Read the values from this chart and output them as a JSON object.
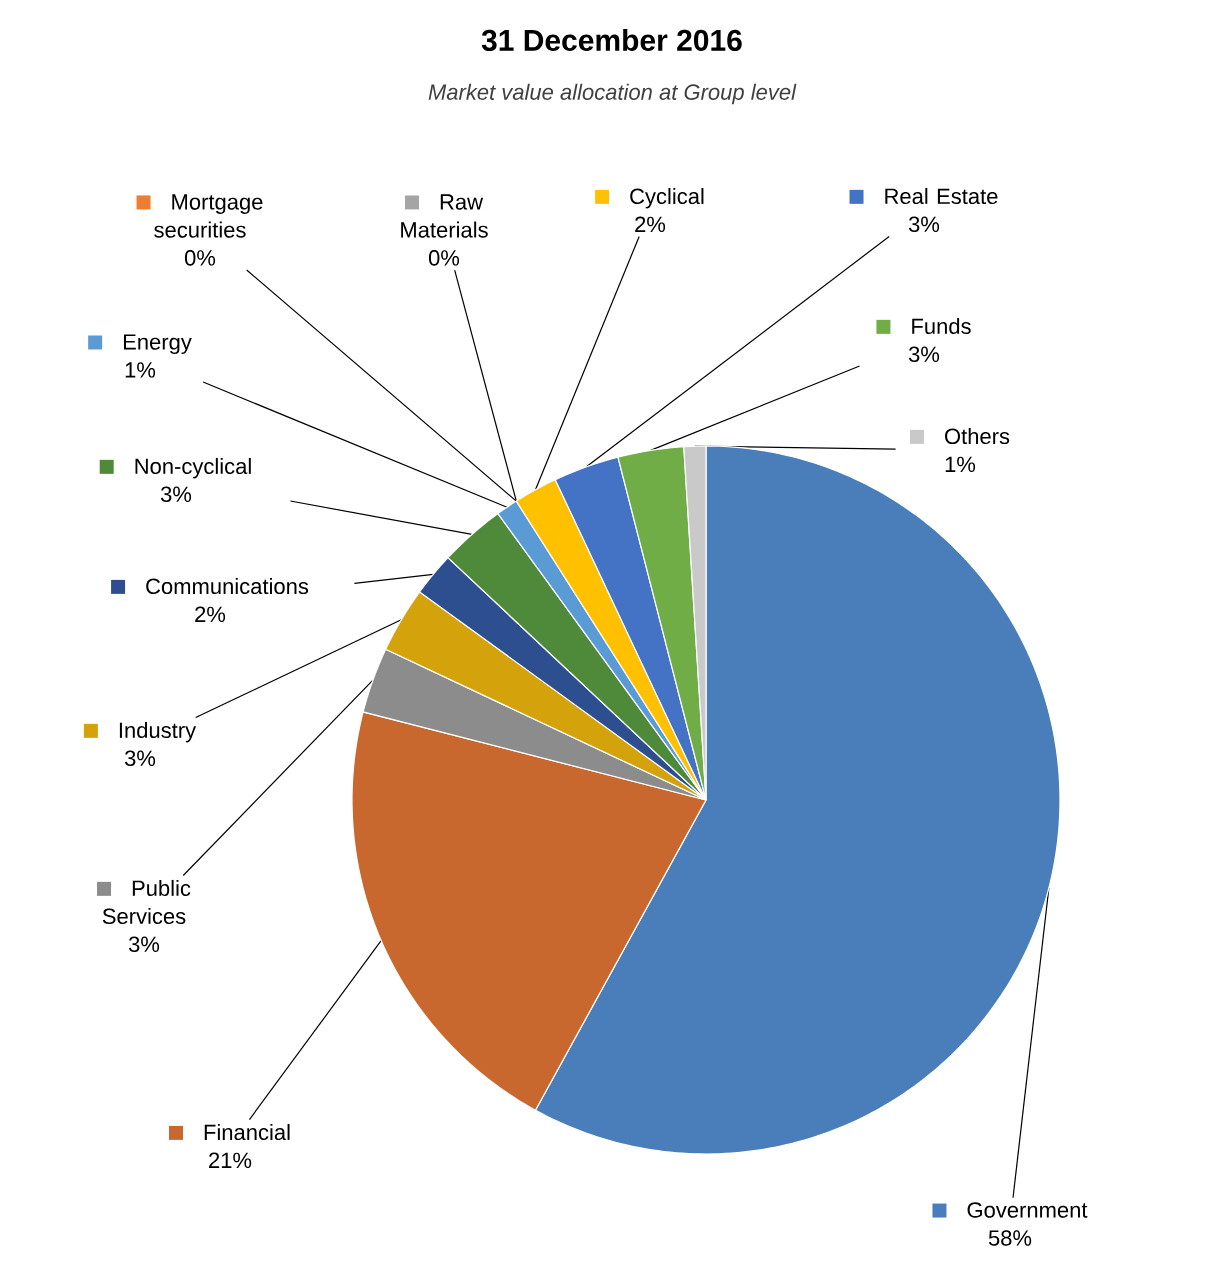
{
  "chart_data": {
    "type": "pie",
    "legend": "left",
    "title": "31 December 2016",
    "subtitle": "Market value allocation at Group level",
    "categories": [
      "Government",
      "Financial",
      "Public Services",
      "Industry",
      "Communications",
      "Non-cyclical",
      "Energy",
      "Mortgage securities",
      "Raw Materials",
      "Cyclical",
      "Real Estate",
      "Funds",
      "Others"
    ],
    "values": [
      58,
      21,
      3,
      3,
      2,
      3,
      1,
      0,
      0,
      2,
      3,
      3,
      1
    ],
    "value_labels": [
      "58%",
      "21%",
      "3%",
      "3%",
      "2%",
      "3%",
      "1%",
      "0%",
      "0%",
      "2%",
      "3%",
      "3%",
      "1%"
    ],
    "colors": [
      "#4a7ebb",
      "#c8682e",
      "#8c8c8c",
      "#d4a20a",
      "#2e4f8f",
      "#4e8a3a",
      "#5b9bd5",
      "#ed7d31",
      "#a5a5a5",
      "#ffc000",
      "#4472c4",
      "#70ad47",
      "#c9c9c9"
    ]
  }
}
